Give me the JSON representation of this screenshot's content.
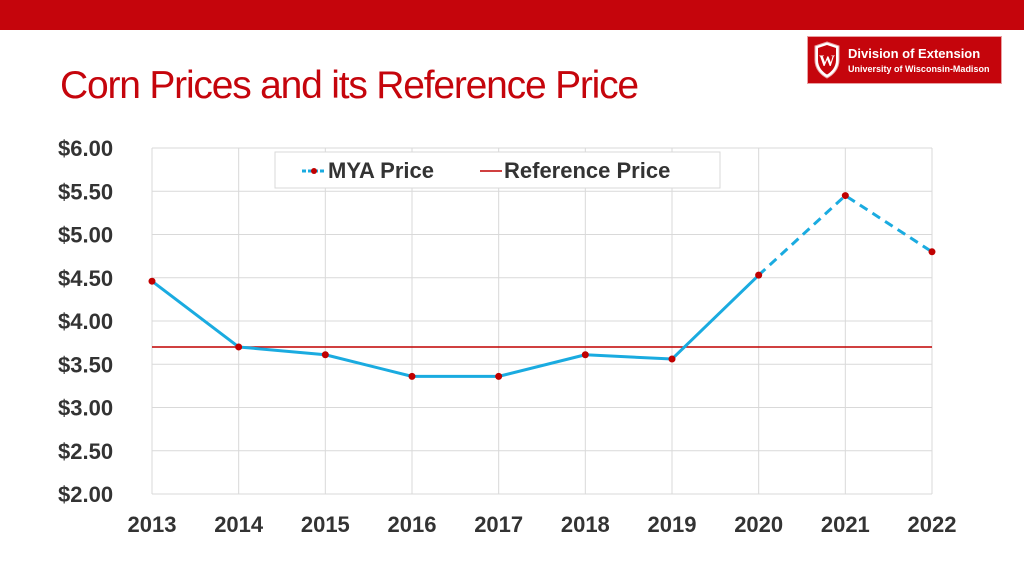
{
  "slide": {
    "title": "Corn Prices and its Reference Price"
  },
  "logo": {
    "line1": "Division of Extension",
    "line2": "University of Wisconsin-Madison",
    "crest_letter": "W"
  },
  "colors": {
    "brand_red": "#c5050c",
    "mya_line": "#1aabe0",
    "mya_marker": "#c00000",
    "reference_line": "#c00000",
    "grid": "#d9d9d9"
  },
  "chart_data": {
    "type": "line",
    "title": "",
    "xlabel": "",
    "ylabel": "",
    "categories": [
      "2013",
      "2014",
      "2015",
      "2016",
      "2017",
      "2018",
      "2019",
      "2020",
      "2021",
      "2022"
    ],
    "ylim": [
      2.0,
      6.0
    ],
    "yticks": [
      "$2.00",
      "$2.50",
      "$3.00",
      "$3.50",
      "$4.00",
      "$4.50",
      "$5.00",
      "$5.50",
      "$6.00"
    ],
    "grid": true,
    "legend_position": "top-center",
    "series": [
      {
        "name": "MYA Price",
        "values": [
          4.46,
          3.7,
          3.61,
          3.36,
          3.36,
          3.61,
          3.56,
          4.53,
          5.45,
          4.8
        ],
        "style": "solid-then-dashed",
        "dashed_from_index": 7
      },
      {
        "name": "Reference Price",
        "values": [
          3.7,
          3.7,
          3.7,
          3.7,
          3.7,
          3.7,
          3.7,
          3.7,
          3.7,
          3.7
        ],
        "style": "solid"
      }
    ]
  }
}
